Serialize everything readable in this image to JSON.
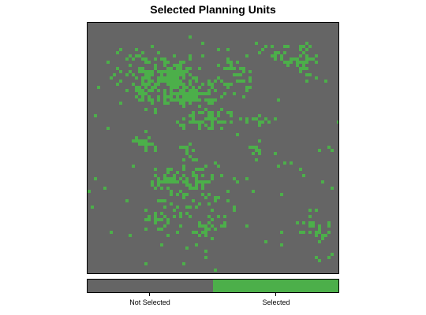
{
  "title": "Selected Planning Units",
  "colors": {
    "not_selected": "#656565",
    "selected": "#4caf4a",
    "border": "#000000"
  },
  "legend": {
    "items": [
      {
        "label": "Not Selected",
        "color": "#656565"
      },
      {
        "label": "Selected",
        "color": "#4caf4a"
      }
    ]
  }
}
